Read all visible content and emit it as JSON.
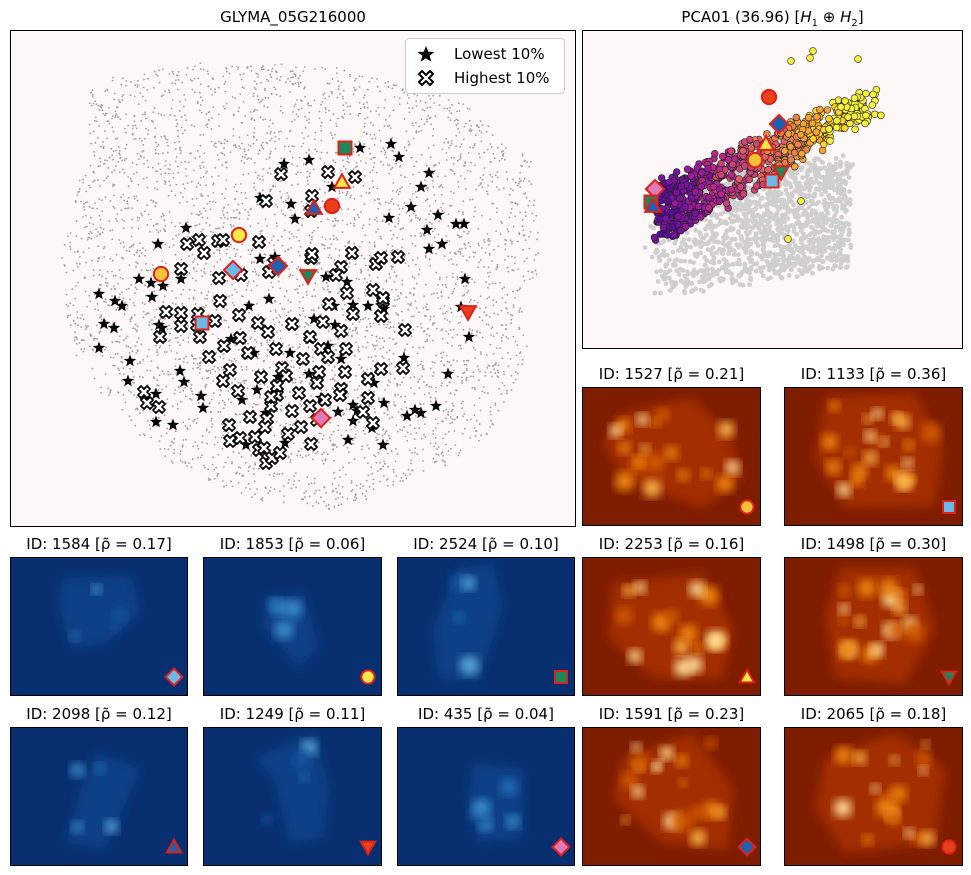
{
  "main": {
    "title": "GLYMA_05G216000",
    "legend": {
      "lowest": "Lowest 10%",
      "highest": "Highest 10%",
      "placement": "top-right"
    }
  },
  "pca": {
    "title": "PCA01 (36.96) [H₁ ⊕ H₂]"
  },
  "panels": [
    {
      "id": "p1527",
      "title": "ID: 1527 [ρ̃ = 0.21]",
      "cmap": "hot",
      "marker": "circle",
      "fill": "#f5c23a"
    },
    {
      "id": "p1133",
      "title": "ID: 1133 [ρ̃ = 0.36]",
      "cmap": "hot",
      "marker": "square",
      "fill": "#6cb8e6"
    },
    {
      "id": "p1584",
      "title": "ID: 1584 [ρ̃ = 0.17]",
      "cmap": "blue",
      "marker": "diamond",
      "fill": "#6cb8e6"
    },
    {
      "id": "p1853",
      "title": "ID: 1853 [ρ̃ = 0.06]",
      "cmap": "blue",
      "marker": "circle",
      "fill": "#f7e84a"
    },
    {
      "id": "p2524",
      "title": "ID: 2524 [ρ̃ = 0.10]",
      "cmap": "blue",
      "marker": "square",
      "fill": "#1a8a5a"
    },
    {
      "id": "p2253",
      "title": "ID: 2253 [ρ̃ = 0.16]",
      "cmap": "hot",
      "marker": "triangle-up",
      "fill": "#f7e84a"
    },
    {
      "id": "p1498",
      "title": "ID: 1498 [ρ̃ = 0.30]",
      "cmap": "hot",
      "marker": "triangle-down",
      "fill": "#1a8a5a"
    },
    {
      "id": "p2098",
      "title": "ID: 2098 [ρ̃ = 0.12]",
      "cmap": "blue",
      "marker": "triangle-up",
      "fill": "#2060b0"
    },
    {
      "id": "p1249",
      "title": "ID: 1249 [ρ̃ = 0.11]",
      "cmap": "blue",
      "marker": "triangle-down",
      "fill": "#e8401a"
    },
    {
      "id": "p435",
      "title": "ID: 435 [ρ̃ = 0.04]",
      "cmap": "blue",
      "marker": "diamond",
      "fill": "#e07ab8"
    },
    {
      "id": "p1591",
      "title": "ID: 1591 [ρ̃ = 0.23]",
      "cmap": "hot",
      "marker": "diamond",
      "fill": "#2060b0"
    },
    {
      "id": "p2065",
      "title": "ID: 2065 [ρ̃ = 0.18]",
      "cmap": "hot",
      "marker": "circle",
      "fill": "#e8401a"
    }
  ],
  "colors": {
    "background_main": "#fdf8f7",
    "cell_dots": "#9c9c9c",
    "marker_edge": "#e0201a",
    "hot_bg": "#7f1d00",
    "blue_bg": "#083070"
  },
  "chart_data": [
    {
      "type": "scatter",
      "name_ref": "main",
      "note": "spatial map with lowest/highest 10% markers",
      "series": [
        "Lowest 10%",
        "Highest 10%"
      ]
    },
    {
      "type": "scatter",
      "name_ref": "pca",
      "series": [
        "PCA projection"
      ]
    },
    {
      "type": "heatmap",
      "name_ref": "panels",
      "count": 12
    }
  ]
}
